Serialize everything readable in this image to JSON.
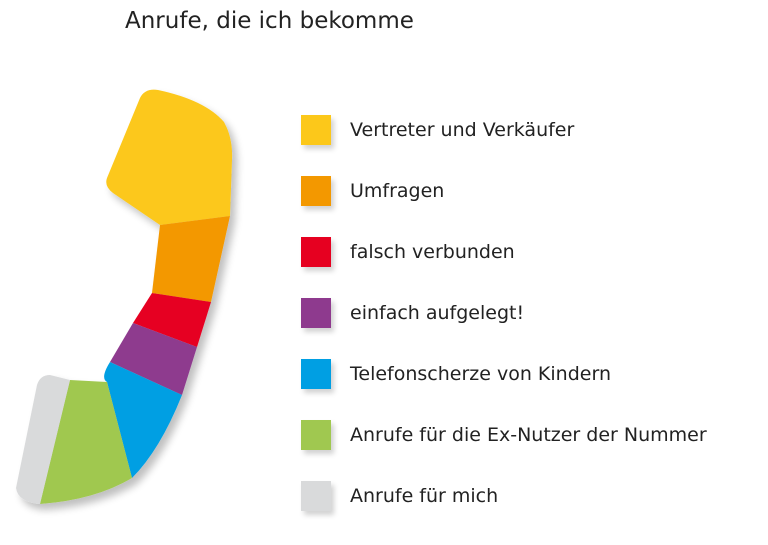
{
  "chart_data": {
    "type": "pie",
    "title": "Anrufe, die ich bekomme",
    "legend_placement": "right",
    "series": [
      {
        "name": "Vertreter und Verkäufer",
        "color": "#FCC81A",
        "value": 33
      },
      {
        "name": "Umfragen",
        "color": "#F39800",
        "value": 17
      },
      {
        "name": "falsch verbunden",
        "color": "#E60020",
        "value": 7
      },
      {
        "name": "einfach aufgelegt!",
        "color": "#8E3A8E",
        "value": 8
      },
      {
        "name": "Telefonscherze von Kindern",
        "color": "#009FE3",
        "value": 14
      },
      {
        "name": "Anrufe für die Ex-Nutzer der Nummer",
        "color": "#A0C850",
        "value": 16
      },
      {
        "name": "Anrufe für mich",
        "color": "#D9DADB",
        "value": 5
      }
    ]
  }
}
